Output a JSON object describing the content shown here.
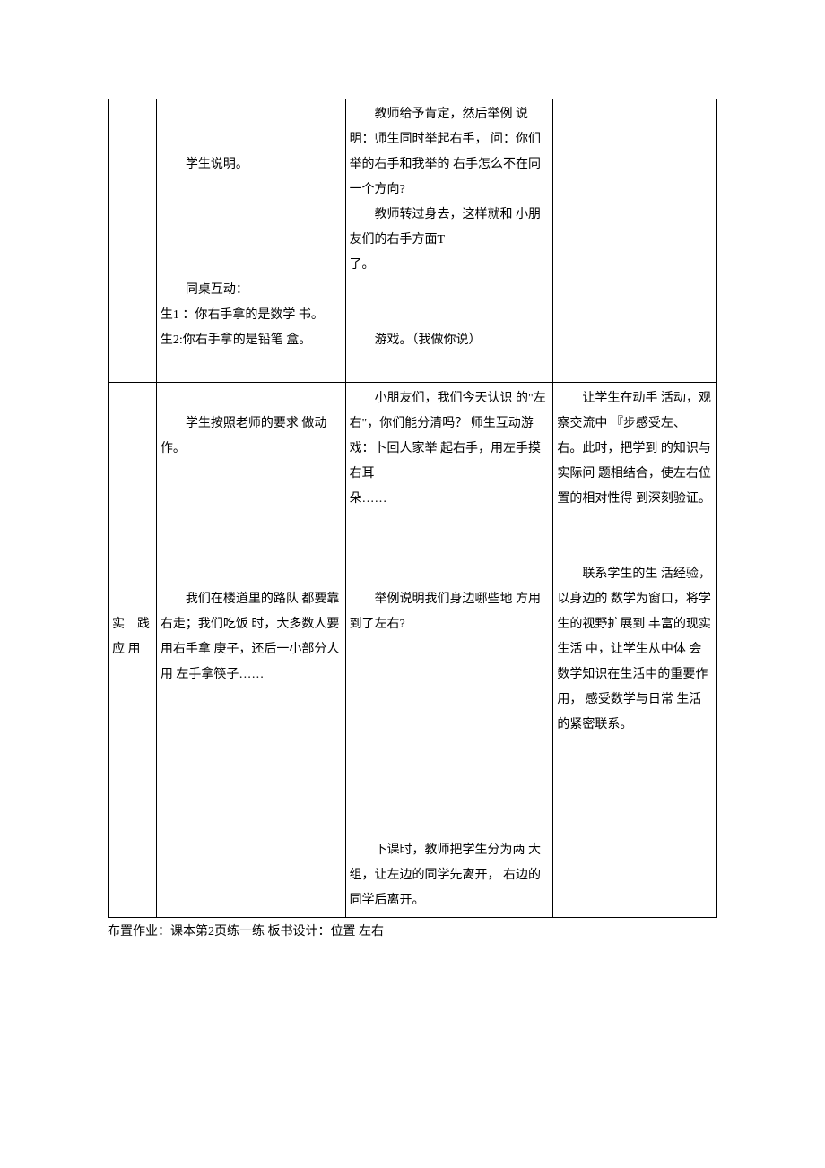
{
  "row1": {
    "col1": "",
    "col2_p1": "学生说明。",
    "col2_p2": "同桌互动：",
    "col2_l1": "生1 ：你右手拿的是数学 书。",
    "col2_l2": "生2:你右手拿的是铅笔 盒。",
    "col3_p1": "教师给予肯定，然后举例 说明：师生同时举起右手， 问：你们举的右手和我举的 右手怎么不在同一个方向?",
    "col3_p2": "教师转过身去，这样就和 小朋友们的右手方面T",
    "col3_l1": "了。",
    "col3_p3": "游戏。（我做你说）",
    "col4": ""
  },
  "row2": {
    "col1_a": "实　践",
    "col1_b": "应 用",
    "col2_p1": "学生按照老师的要求 做动作。",
    "col2_p2": "我们在楼道里的路队 都要靠右走；我们吃饭 时，大多数人要用右手拿 庚子，还后一小部分人用 左手拿筷子……",
    "col3_p1": "小朋友们，我们今天认识 的\"左右\"，你们能分清吗？ 师生互动游戏：卜回人家举 起右手，用左手摸右耳",
    "col3_l1": "朵……",
    "col3_p2": "举例说明我们身边哪些地 方用到了左右?",
    "col3_p3": "下课时，教师把学生分为两 大组，让左边的同学先离开， 右边的同学后离开。",
    "col4_p1": "让学生在动手 活动，观察交流中 『步感受左、 右。此时，把学到 的知识与实际问 题相结合，使左右位置的相对性得 到深刻验证。",
    "col4_p2": "联系学生的生 活经验，以身边的 数学为窗口，将学 生的视野扩展到 丰富的现实生活 中，让学生从中体 会数学知识在生活中的重要作用， 感受数学与日常 生活的紧密联系。"
  },
  "footer": "布置作业：课本第2页练一练 板书设计：位置 左右"
}
